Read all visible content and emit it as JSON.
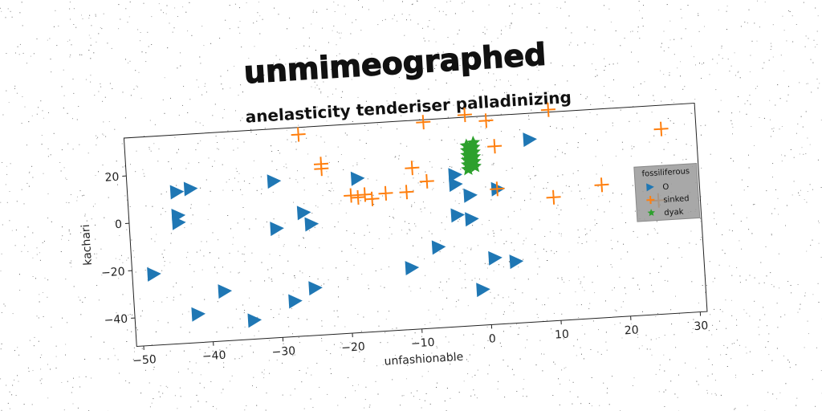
{
  "chart_data": {
    "type": "scatter",
    "title": "unmimeographed",
    "subtitle": "anelasticity tenderiser palladinizing",
    "xlabel": "unfashionable",
    "ylabel": "kachari",
    "xlim": [
      -51,
      31
    ],
    "ylim": [
      -52,
      36
    ],
    "xticks": [
      -50,
      -40,
      -30,
      -20,
      -10,
      0,
      10,
      20,
      30
    ],
    "yticks": [
      -40,
      -20,
      0,
      20
    ],
    "grid": false,
    "legend": {
      "title": "fossiliferous",
      "placement": "right"
    },
    "series": [
      {
        "name": "O",
        "marker": "triangle-right",
        "color": "#1f77b4",
        "points": [
          [
            -48,
            -22
          ],
          [
            -44,
            12
          ],
          [
            -42,
            13
          ],
          [
            -44,
            2
          ],
          [
            -44,
            -1
          ],
          [
            -42,
            -40
          ],
          [
            -38,
            -31
          ],
          [
            -34,
            -44
          ],
          [
            -30,
            14
          ],
          [
            -30,
            -6
          ],
          [
            -28,
            -37
          ],
          [
            -26,
            0
          ],
          [
            -25,
            -5
          ],
          [
            -25,
            -32
          ],
          [
            -18,
            13
          ],
          [
            -11,
            -26
          ],
          [
            -7,
            -18
          ],
          [
            -4,
            12
          ],
          [
            -4,
            8
          ],
          [
            -4,
            -5
          ],
          [
            -2,
            3
          ],
          [
            -2,
            -7
          ],
          [
            -1,
            -37
          ],
          [
            1,
            -24
          ],
          [
            2,
            5
          ],
          [
            4,
            -26
          ],
          [
            7,
            25
          ]
        ]
      },
      {
        "name": "sinked",
        "marker": "plus",
        "color": "#ff7f0e",
        "points": [
          [
            -26,
            33
          ],
          [
            -23,
            20
          ],
          [
            -23,
            18
          ],
          [
            -19,
            6
          ],
          [
            -18,
            5
          ],
          [
            -17,
            6
          ],
          [
            -16,
            4
          ],
          [
            -14,
            6
          ],
          [
            -11,
            6
          ],
          [
            -10,
            16
          ],
          [
            -8,
            35
          ],
          [
            -8,
            10
          ],
          [
            -2,
            37
          ],
          [
            1,
            34
          ],
          [
            2,
            23
          ],
          [
            2,
            5
          ],
          [
            10,
            37
          ],
          [
            10,
            0
          ],
          [
            17,
            4
          ],
          [
            25,
            -4
          ],
          [
            26,
            26
          ]
        ]
      },
      {
        "name": "dyak",
        "marker": "star",
        "color": "#2ca02c",
        "points": [
          [
            -2,
            22
          ],
          [
            -2,
            20
          ],
          [
            -2,
            18
          ],
          [
            -2,
            16
          ],
          [
            -1,
            23
          ],
          [
            -1,
            21
          ],
          [
            -1,
            19
          ],
          [
            -1,
            17
          ],
          [
            -2,
            24
          ],
          [
            -1,
            15
          ],
          [
            -2,
            14
          ],
          [
            -1,
            25
          ]
        ]
      }
    ]
  }
}
